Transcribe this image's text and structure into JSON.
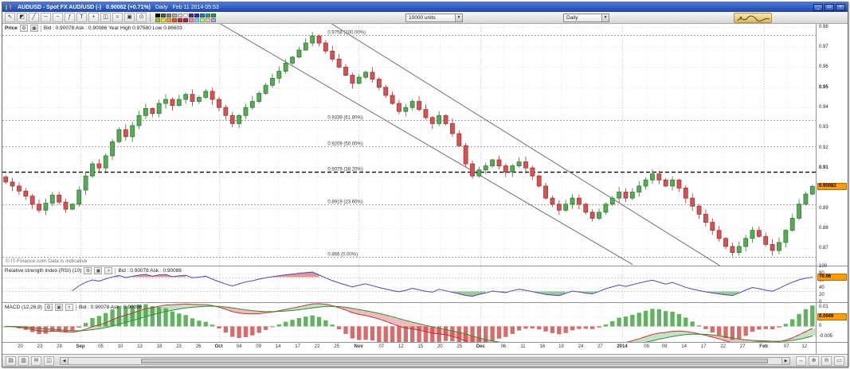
{
  "window": {
    "title_instrument": "AUDUSD - Spot FX AUD/USD (-)",
    "title_price": "0.90082 (+0.71%)",
    "title_timeframe": "Daily",
    "title_datetime": "Feb 11 2014 05:53",
    "buttons": [
      {
        "name": "minimize-button",
        "glyph": "_"
      },
      {
        "name": "maximize-button",
        "glyph": "□"
      },
      {
        "name": "close-button",
        "glyph": "×"
      }
    ]
  },
  "toolbar": {
    "units_label": "10000 units",
    "interval_label": "Daily",
    "dropdown_arrow": "▼",
    "tools": [
      {
        "name": "pointer-tool-icon",
        "glyph": "↖"
      },
      {
        "name": "eraser-tool-icon",
        "glyph": "◩"
      },
      {
        "name": "trendline-tool-icon",
        "glyph": "╱"
      },
      {
        "name": "horizontal-line-tool-icon",
        "glyph": "─"
      },
      {
        "name": "freehand-tool-icon",
        "glyph": "~"
      },
      {
        "name": "fibonacci-tool-icon",
        "glyph": "ƒ"
      },
      {
        "name": "text-tool-icon",
        "glyph": "T"
      },
      {
        "name": "crosshair-tool-icon",
        "glyph": "+"
      },
      {
        "name": "candlestick-style-icon",
        "glyph": "◫"
      },
      {
        "name": "indicator-icon",
        "glyph": "≈"
      },
      {
        "name": "snapshot-icon",
        "glyph": "▣"
      },
      {
        "name": "zoom-tool-icon",
        "glyph": "⊙"
      }
    ],
    "palette": [
      "#000000",
      "#555555",
      "#808080",
      "#aaaaaa",
      "#d5d5d5",
      "#ffffff",
      "#5a2d8c",
      "#1f3f9e",
      "#2e75b6",
      "#2e9e9e",
      "#2f9e2f",
      "#9ec72f",
      "#f2e52f",
      "#f2a52f",
      "#e2572f",
      "#d22f2f",
      "#8c2f5a",
      "#f28cb0",
      "#8cd2f2",
      "#b0f28c",
      "#f2d28c",
      "#b0a0f2"
    ]
  },
  "panels": {
    "price": {
      "title": "Price",
      "bid_ask": "Bid : 0.90078   Ask : 0.90086   Year High 0.97580   Low 0.86603",
      "copyright": "© IT-Finance.com Data is indicative",
      "axis_ticks": [
        {
          "v": 0.98,
          "label": "0.98"
        },
        {
          "v": 0.97,
          "label": "0.97"
        },
        {
          "v": 0.96,
          "label": "0.96"
        },
        {
          "v": 0.95,
          "label": "0.95",
          "bold": true
        },
        {
          "v": 0.94,
          "label": "0.94"
        },
        {
          "v": 0.93,
          "label": "0.93"
        },
        {
          "v": 0.92,
          "label": "0.92"
        },
        {
          "v": 0.91,
          "label": "0.91",
          "bold": true
        },
        {
          "v": 0.89,
          "label": "0.89"
        },
        {
          "v": 0.88,
          "label": "0.88"
        },
        {
          "v": 0.87,
          "label": "0.87"
        }
      ]
    },
    "rsi": {
      "title": "Relative strength index (RSI) (10)",
      "bid_ask": "Bid : 0.90078   Ask : 0.90086",
      "axis_ticks": [
        {
          "v": 100,
          "label": "100"
        },
        {
          "v": 80,
          "label": "80"
        },
        {
          "v": 60,
          "label": "60"
        },
        {
          "v": 40,
          "label": "40"
        },
        {
          "v": 20,
          "label": "20"
        },
        {
          "v": 0,
          "label": "0"
        }
      ],
      "range": [
        0,
        100
      ]
    },
    "macd": {
      "title": "MACD (12,26,9)",
      "bid_ask": "Bid : 0.90078   Ask : 0.90086",
      "axis_ticks": [
        {
          "v": 0.01,
          "label": "0.01"
        },
        {
          "v": 0.005,
          "label": "0.005"
        },
        {
          "v": 0,
          "label": "0"
        },
        {
          "v": -0.005,
          "label": "-0.005"
        }
      ],
      "range": [
        -0.008,
        0.012
      ]
    }
  },
  "chart_data": {
    "type": "candlestick",
    "symbol": "AUD/USD",
    "timeframe": "Daily",
    "price_range": [
      0.8615,
      0.9815
    ],
    "closes": [
      0.903,
      0.901,
      0.8985,
      0.896,
      0.892,
      0.889,
      0.8925,
      0.8965,
      0.893,
      0.8895,
      0.892,
      0.899,
      0.906,
      0.912,
      0.91,
      0.916,
      0.923,
      0.929,
      0.9255,
      0.931,
      0.936,
      0.9395,
      0.937,
      0.942,
      0.944,
      0.941,
      0.944,
      0.9465,
      0.943,
      0.945,
      0.948,
      0.944,
      0.94,
      0.936,
      0.932,
      0.936,
      0.94,
      0.943,
      0.947,
      0.951,
      0.9545,
      0.958,
      0.962,
      0.965,
      0.9685,
      0.972,
      0.9755,
      0.972,
      0.968,
      0.964,
      0.96,
      0.956,
      0.952,
      0.955,
      0.9575,
      0.954,
      0.95,
      0.946,
      0.942,
      0.938,
      0.94,
      0.943,
      0.939,
      0.935,
      0.932,
      0.936,
      0.932,
      0.927,
      0.921,
      0.912,
      0.906,
      0.909,
      0.911,
      0.914,
      0.911,
      0.908,
      0.911,
      0.913,
      0.91,
      0.906,
      0.901,
      0.895,
      0.892,
      0.889,
      0.892,
      0.895,
      0.892,
      0.888,
      0.885,
      0.888,
      0.892,
      0.895,
      0.898,
      0.895,
      0.898,
      0.901,
      0.904,
      0.907,
      0.904,
      0.901,
      0.904,
      0.9,
      0.895,
      0.891,
      0.887,
      0.883,
      0.879,
      0.875,
      0.871,
      0.868,
      0.871,
      0.875,
      0.879,
      0.876,
      0.872,
      0.869,
      0.873,
      0.879,
      0.885,
      0.892,
      0.897,
      0.9008
    ],
    "fib_levels": [
      {
        "price": 0.9758,
        "label": "0.9758 (100.00%)",
        "bold": false
      },
      {
        "price": 0.9339,
        "label": "0.9339 (61.80%)",
        "bold": false
      },
      {
        "price": 0.9209,
        "label": "0.9209 (50.00%)",
        "bold": false
      },
      {
        "price": 0.9079,
        "label": "0.9079 (38.20%)",
        "bold": true
      },
      {
        "price": 0.8919,
        "label": "0.8919 (23.60%)",
        "bold": false
      },
      {
        "price": 0.866,
        "label": "0.866 (0.00%)",
        "bold": false
      }
    ],
    "trendlines": [
      {
        "x1": 0.268,
        "p1": 0.9815,
        "x2": 0.775,
        "p2": 0.862
      },
      {
        "x1": 0.405,
        "p1": 0.9815,
        "x2": 0.888,
        "p2": 0.86
      }
    ],
    "indicators": [
      {
        "name": "RSI",
        "period": 10
      },
      {
        "name": "MACD",
        "fast": 12,
        "slow": 26,
        "signal": 9
      }
    ],
    "current": {
      "price": 0.90082,
      "price_label": "0.90082",
      "rsi": 70.06,
      "rsi_label": "70.06",
      "macd": 0.0049,
      "macd_label": "0.0049"
    }
  },
  "time_axis": {
    "labels": [
      {
        "t": "20",
        "f": 0.022
      },
      {
        "t": "23",
        "f": 0.046
      },
      {
        "t": "28",
        "f": 0.07
      },
      {
        "t": "Sep",
        "f": 0.096,
        "b": true
      },
      {
        "t": "05",
        "f": 0.121
      },
      {
        "t": "10",
        "f": 0.145
      },
      {
        "t": "13",
        "f": 0.169
      },
      {
        "t": "18",
        "f": 0.193
      },
      {
        "t": "23",
        "f": 0.217
      },
      {
        "t": "26",
        "f": 0.241
      },
      {
        "t": "Oct",
        "f": 0.266,
        "b": true
      },
      {
        "t": "04",
        "f": 0.291
      },
      {
        "t": "09",
        "f": 0.315
      },
      {
        "t": "14",
        "f": 0.339
      },
      {
        "t": "17",
        "f": 0.363
      },
      {
        "t": "22",
        "f": 0.387
      },
      {
        "t": "25",
        "f": 0.411
      },
      {
        "t": "Nov",
        "f": 0.438,
        "b": true
      },
      {
        "t": "07",
        "f": 0.466
      },
      {
        "t": "12",
        "f": 0.49
      },
      {
        "t": "15",
        "f": 0.514
      },
      {
        "t": "20",
        "f": 0.538
      },
      {
        "t": "25",
        "f": 0.562
      },
      {
        "t": "Dec",
        "f": 0.588,
        "b": true
      },
      {
        "t": "06",
        "f": 0.616
      },
      {
        "t": "11",
        "f": 0.64
      },
      {
        "t": "16",
        "f": 0.664
      },
      {
        "t": "19",
        "f": 0.687
      },
      {
        "t": "24",
        "f": 0.711
      },
      {
        "t": "27",
        "f": 0.735
      },
      {
        "t": "2014",
        "f": 0.762,
        "b": true
      },
      {
        "t": "08",
        "f": 0.792
      },
      {
        "t": "09",
        "f": 0.814
      },
      {
        "t": "14",
        "f": 0.838
      },
      {
        "t": "17",
        "f": 0.862
      },
      {
        "t": "22",
        "f": 0.886
      },
      {
        "t": "27",
        "f": 0.91
      },
      {
        "t": "Feb",
        "f": 0.936,
        "b": true
      },
      {
        "t": "07",
        "f": 0.964
      },
      {
        "t": "12",
        "f": 0.986
      }
    ]
  },
  "statusbar": {
    "left_icons": [
      {
        "name": "save-icon",
        "glyph": "▤"
      },
      {
        "name": "print-icon",
        "glyph": "▥"
      },
      {
        "name": "email-icon",
        "glyph": "✉"
      },
      {
        "name": "new-chart-icon",
        "glyph": "◫"
      }
    ],
    "right_icons": [
      {
        "name": "pan-icon",
        "glyph": "↔"
      },
      {
        "name": "zoom-in-icon",
        "glyph": "⊕"
      },
      {
        "name": "zoom-out-icon",
        "glyph": "⊖"
      },
      {
        "name": "fit-chart-icon",
        "glyph": "▭"
      }
    ],
    "scroll_left_arrow": "◀",
    "scroll_right_arrow": "▶"
  }
}
